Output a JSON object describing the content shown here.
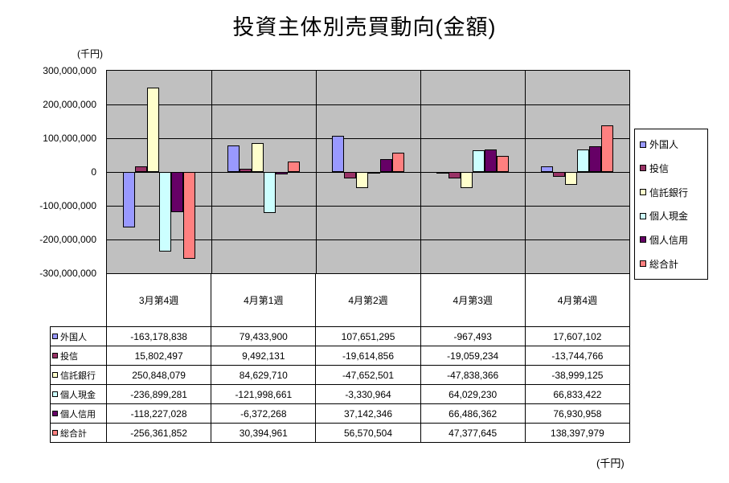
{
  "title": "投資主体別売買動向(金額)",
  "y_axis_unit_label": "(千円)",
  "footer_unit_label": "(千円)",
  "chart_data": {
    "type": "bar",
    "title": "投資主体別売買動向(金額)",
    "unit": "千円",
    "categories": [
      "3月第4週",
      "4月第1週",
      "4月第2週",
      "4月第3週",
      "4月第4週"
    ],
    "series": [
      {
        "name": "外国人",
        "color": "#9999FF",
        "values": [
          -163178838,
          79433900,
          107651295,
          -967493,
          17607102
        ]
      },
      {
        "name": "投信",
        "color": "#993366",
        "values": [
          15802497,
          9492131,
          -19614856,
          -19059234,
          -13744766
        ]
      },
      {
        "name": "信託銀行",
        "color": "#FFFFCC",
        "values": [
          250848079,
          84629710,
          -47652501,
          -47838366,
          -38999125
        ]
      },
      {
        "name": "個人現金",
        "color": "#CCFFFF",
        "values": [
          -236899281,
          -121998661,
          -3330964,
          64029230,
          66833422
        ]
      },
      {
        "name": "個人信用",
        "color": "#660066",
        "values": [
          -118227028,
          -6372268,
          37142346,
          66486362,
          76930958
        ]
      },
      {
        "name": "総合計",
        "color": "#FF8080",
        "values": [
          -256361852,
          30394961,
          56570504,
          47377645,
          138397979
        ]
      }
    ],
    "ylim": [
      -300000000,
      300000000
    ],
    "ytick_interval": 100000000,
    "grid": true,
    "gridline_color": "#000000",
    "plot_background": "#C0C0C0",
    "legend_position": "right",
    "data_table_shown": true
  }
}
